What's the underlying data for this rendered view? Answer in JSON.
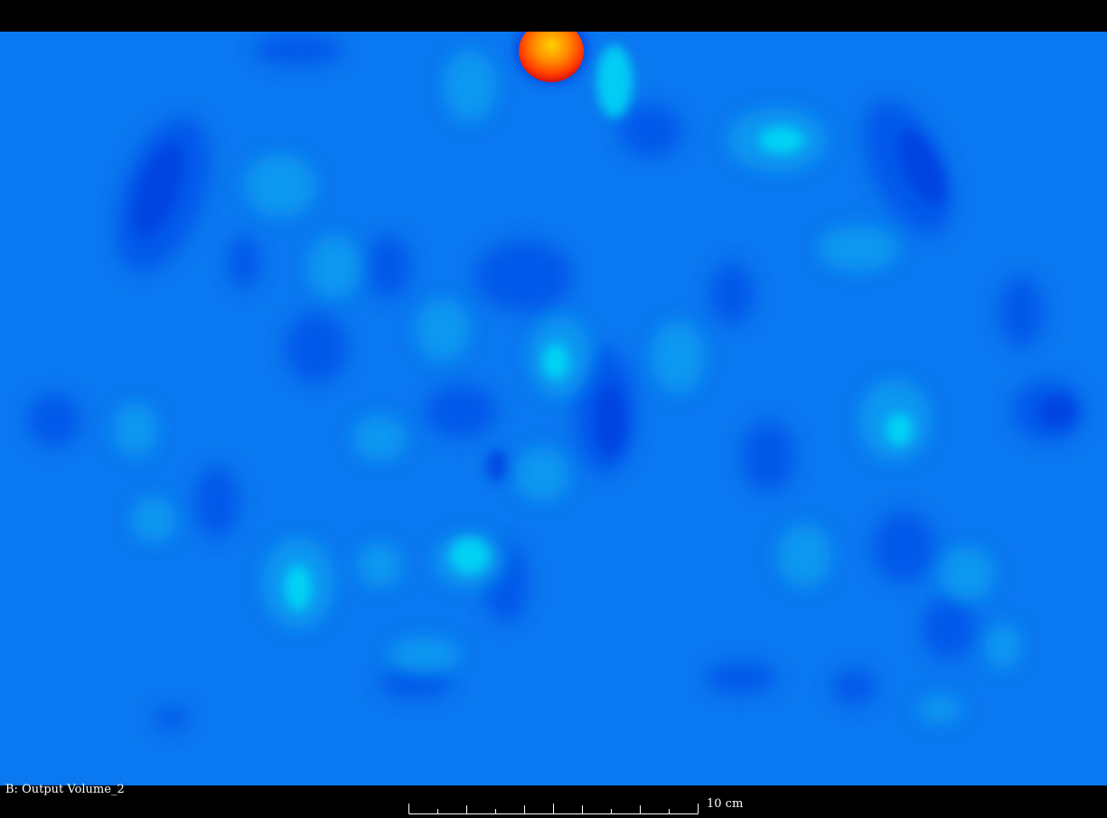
{
  "view": {
    "label": "B: Output Volume_2"
  },
  "scale_bar": {
    "label": "10 cm",
    "ticks": 10
  },
  "colors": {
    "background": "#000000",
    "field_base": "#0a78f0",
    "field_low": "#0050e8",
    "field_mid": "#0aa0f0",
    "field_high": "#00e4f4",
    "hotspot_outer": "#e02010",
    "hotspot_mid": "#ff6a00",
    "hotspot_core": "#ffc000",
    "text": "#ffffff"
  }
}
